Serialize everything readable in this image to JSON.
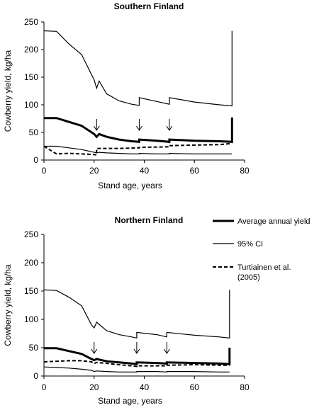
{
  "chart_data": [
    {
      "type": "line",
      "title": "Southern Finland",
      "xlabel": "Stand age, years",
      "ylabel": "Cowberry yield, kg/ha",
      "xlim": [
        0,
        80
      ],
      "ylim": [
        0,
        250
      ],
      "xticks": [
        "0",
        "20",
        "40",
        "60",
        "80"
      ],
      "yticks": [
        "0",
        "50",
        "100",
        "150",
        "200",
        "250"
      ],
      "grid": false,
      "series": [
        {
          "name": "Average annual yield",
          "style": "thick",
          "x": [
            0,
            5,
            10,
            15,
            20,
            21,
            22,
            25,
            30,
            35,
            38,
            38,
            45,
            50,
            50,
            60,
            70,
            75,
            75
          ],
          "y": [
            76,
            76,
            69,
            62,
            47,
            42,
            47,
            42,
            37,
            34,
            33,
            37,
            35,
            33,
            37,
            35,
            34,
            33,
            77
          ]
        },
        {
          "name": "95% CI (upper)",
          "style": "thin",
          "x": [
            0,
            5,
            10,
            15,
            20,
            21,
            22,
            25,
            30,
            35,
            38,
            38,
            45,
            50,
            50,
            60,
            70,
            75,
            75
          ],
          "y": [
            234,
            233,
            210,
            191,
            145,
            130,
            143,
            120,
            107,
            101,
            99,
            113,
            106,
            101,
            113,
            105,
            100,
            98,
            234
          ]
        },
        {
          "name": "95% CI (lower)",
          "style": "thin",
          "x": [
            0,
            5,
            10,
            15,
            20,
            21,
            22,
            25,
            30,
            35,
            38,
            38,
            45,
            50,
            50,
            60,
            70,
            75
          ],
          "y": [
            25,
            25,
            22,
            19,
            14,
            13,
            14,
            13,
            12,
            11,
            11,
            12,
            11,
            11,
            12,
            11,
            11,
            11
          ]
        },
        {
          "name": "Turtiainen et al. (2005)",
          "style": "dashed",
          "x": [
            0,
            5,
            10,
            15,
            20,
            21,
            21,
            30,
            38,
            38,
            50,
            50,
            60,
            70,
            75
          ],
          "y": [
            25,
            11,
            12,
            11,
            10,
            9,
            21,
            21,
            22,
            23,
            24,
            26,
            27,
            28,
            30
          ]
        }
      ],
      "annotations": {
        "arrows_at_x": [
          21,
          38,
          50
        ]
      }
    },
    {
      "type": "line",
      "title": "Northern Finland",
      "xlabel": "Stand age, years",
      "ylabel": "Cowberry yield, kg/ha",
      "xlim": [
        0,
        80
      ],
      "ylim": [
        0,
        250
      ],
      "xticks": [
        "0",
        "20",
        "40",
        "60",
        "80"
      ],
      "yticks": [
        "0",
        "50",
        "100",
        "150",
        "200",
        "250"
      ],
      "grid": false,
      "legend": {
        "placement": "right",
        "entries": [
          {
            "label": "Average annual yield",
            "style": "thick"
          },
          {
            "label": "95% CI",
            "style": "thin"
          },
          {
            "label_lines": [
              "Turtiainen et al.",
              "(2005)"
            ],
            "style": "dashed"
          }
        ]
      },
      "series": [
        {
          "name": "Average annual yield",
          "style": "thick",
          "x": [
            0,
            5,
            10,
            15,
            19,
            20,
            21,
            25,
            30,
            35,
            37,
            37,
            45,
            49,
            49,
            60,
            70,
            74,
            74
          ],
          "y": [
            49,
            49,
            44,
            39,
            30,
            28,
            30,
            26,
            24,
            22,
            21,
            24,
            23,
            22,
            24,
            23,
            22,
            21,
            50
          ]
        },
        {
          "name": "95% CI (upper)",
          "style": "thin",
          "x": [
            0,
            5,
            10,
            15,
            19,
            20,
            21,
            25,
            30,
            35,
            37,
            37,
            45,
            49,
            49,
            60,
            70,
            74,
            74
          ],
          "y": [
            152,
            151,
            139,
            124,
            90,
            85,
            95,
            80,
            73,
            69,
            67,
            77,
            73,
            69,
            77,
            72,
            69,
            67,
            152
          ]
        },
        {
          "name": "95% CI (lower)",
          "style": "thin",
          "x": [
            0,
            5,
            10,
            15,
            19,
            20,
            21,
            25,
            30,
            35,
            37,
            37,
            45,
            49,
            49,
            60,
            70,
            74
          ],
          "y": [
            16,
            15,
            14,
            12,
            10,
            8,
            9,
            8,
            7,
            7,
            7,
            8,
            8,
            7,
            8,
            8,
            7,
            7
          ]
        },
        {
          "name": "Turtiainen et al. (2005)",
          "style": "dashed",
          "x": [
            0,
            5,
            10,
            15,
            19,
            20,
            21,
            30,
            37,
            37,
            49,
            49,
            60,
            70,
            74
          ],
          "y": [
            25,
            26,
            27,
            27,
            25,
            22,
            24,
            20,
            17,
            18,
            18,
            19,
            20,
            19,
            19
          ]
        }
      ],
      "annotations": {
        "arrows_at_x": [
          20,
          37,
          49
        ]
      }
    }
  ]
}
